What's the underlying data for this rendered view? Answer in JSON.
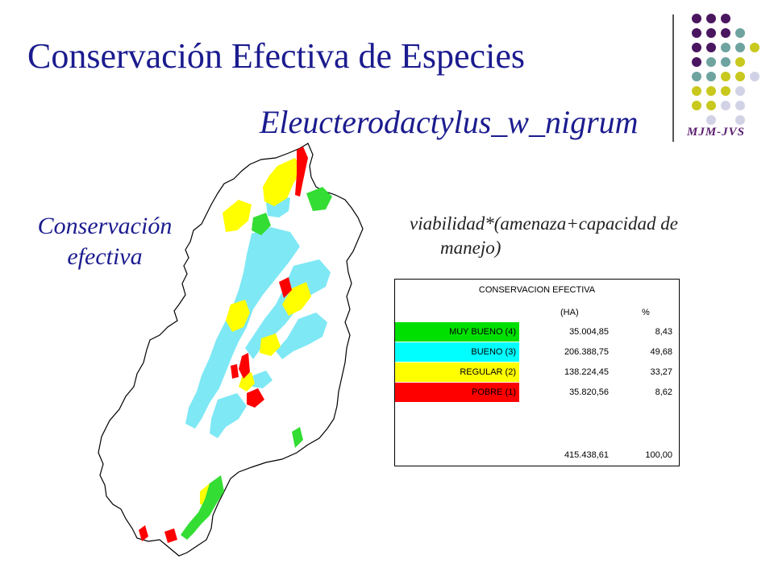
{
  "slide": {
    "title": "Conservación Efectiva de Especies",
    "species": "Eleucterodactylus_w_nigrum",
    "side_label_line1": "Conservación",
    "side_label_line2": "efectiva",
    "formula_line1": "viabilidad*(amenaza+capacidad de",
    "formula_line2": "manejo)",
    "logo_text": "MJM-JVS"
  },
  "colors": {
    "title": "#1b1b8f",
    "muy_bueno": "#00e000",
    "bueno": "#00ffff",
    "regular": "#ffff00",
    "pobre": "#ff0000",
    "logo_purple": "#4b1660",
    "logo_teal": "#6fa3a0",
    "logo_olive": "#c8c81e",
    "logo_lavender": "#d2d2e6"
  },
  "table": {
    "header": "CONSERVACION EFECTIVA",
    "col_ha": "(HA)",
    "col_pct": "%",
    "rows": [
      {
        "category": "MUY BUENO (4)",
        "ha": "35.004,85",
        "pct": "8,43"
      },
      {
        "category": "BUENO (3)",
        "ha": "206.388,75",
        "pct": "49,68"
      },
      {
        "category": "REGULAR (2)",
        "ha": "138.224,45",
        "pct": "33,27"
      },
      {
        "category": "POBRE (1)",
        "ha": "35.820,56",
        "pct": "8,62"
      }
    ],
    "total_ha": "415.438,61",
    "total_pct": "100,00"
  }
}
